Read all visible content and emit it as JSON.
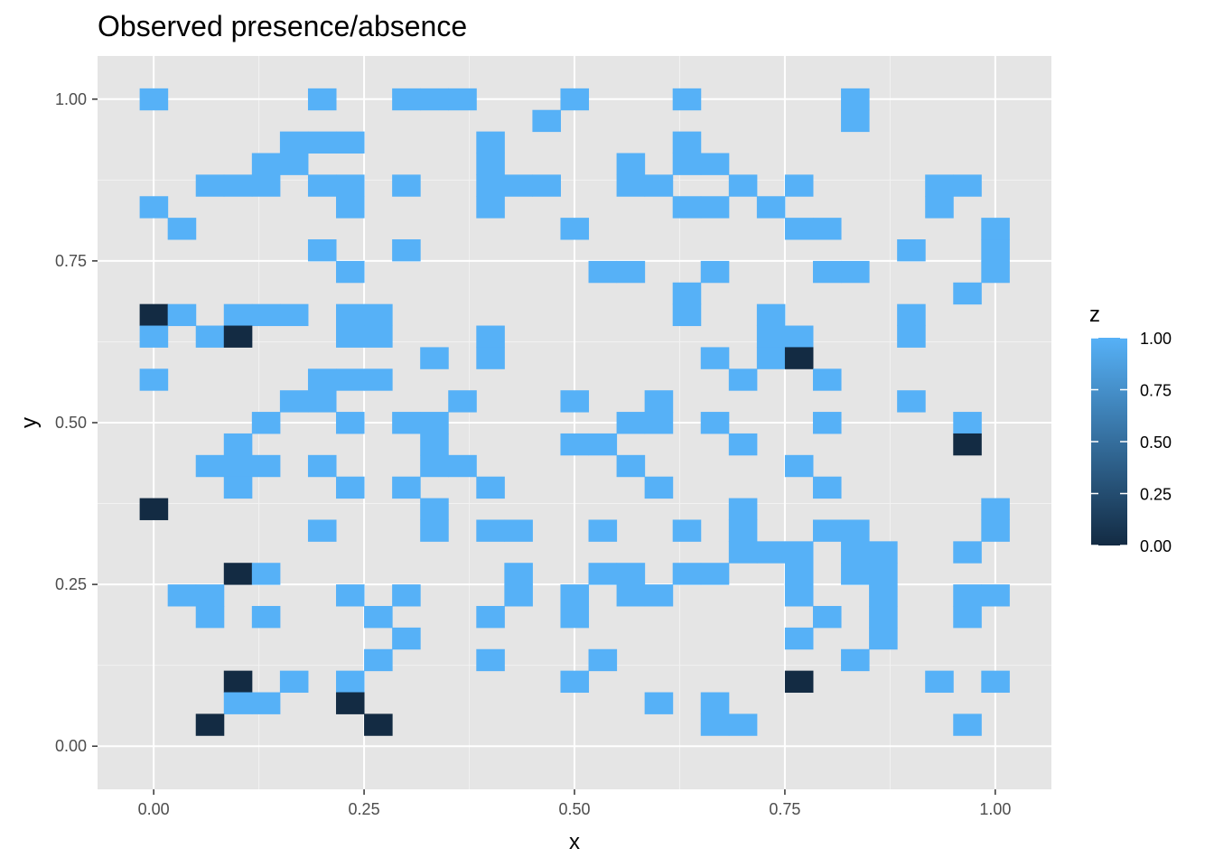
{
  "chart_data": {
    "type": "heatmap",
    "title": "Observed presence/absence",
    "xlabel": "x",
    "ylabel": "y",
    "xlim": [
      -0.0667,
      1.0667
    ],
    "ylim": [
      -0.0667,
      1.0667
    ],
    "xticks": [
      0,
      0.25,
      0.5,
      0.75,
      1
    ],
    "yticks": [
      0,
      0.25,
      0.5,
      0.75,
      1
    ],
    "xtick_labels": [
      "0.00",
      "0.25",
      "0.50",
      "0.75",
      "1.00"
    ],
    "ytick_labels": [
      "0.00",
      "0.25",
      "0.50",
      "0.75",
      "1.00"
    ],
    "grid": true,
    "panel_background": "#e5e5e5",
    "cell_width": 0.03333,
    "color_low": "#132b43",
    "color_high": "#56b1f7",
    "legend": {
      "title": "z",
      "position": "right",
      "breaks": [
        0,
        0.25,
        0.5,
        0.75,
        1
      ],
      "labels": [
        "0.00",
        "0.25",
        "0.50",
        "0.75",
        "1.00"
      ]
    },
    "note_cells": "each cell is [column, row, z]; column index c maps to x = c/30, row index r maps to y = r/30",
    "cells": [
      [
        0,
        30,
        1
      ],
      [
        6,
        30,
        1
      ],
      [
        9,
        30,
        1
      ],
      [
        10,
        30,
        1
      ],
      [
        11,
        30,
        1
      ],
      [
        15,
        30,
        1
      ],
      [
        19,
        30,
        1
      ],
      [
        25,
        30,
        1
      ],
      [
        14,
        29,
        1
      ],
      [
        25,
        29,
        1
      ],
      [
        5,
        28,
        1
      ],
      [
        6,
        28,
        1
      ],
      [
        7,
        28,
        1
      ],
      [
        12,
        28,
        1
      ],
      [
        19,
        28,
        1
      ],
      [
        4,
        27,
        1
      ],
      [
        5,
        27,
        1
      ],
      [
        12,
        27,
        1
      ],
      [
        17,
        27,
        1
      ],
      [
        19,
        27,
        1
      ],
      [
        20,
        27,
        1
      ],
      [
        2,
        26,
        1
      ],
      [
        3,
        26,
        1
      ],
      [
        4,
        26,
        1
      ],
      [
        6,
        26,
        1
      ],
      [
        7,
        26,
        1
      ],
      [
        9,
        26,
        1
      ],
      [
        12,
        26,
        1
      ],
      [
        13,
        26,
        1
      ],
      [
        14,
        26,
        1
      ],
      [
        17,
        26,
        1
      ],
      [
        18,
        26,
        1
      ],
      [
        21,
        26,
        1
      ],
      [
        23,
        26,
        1
      ],
      [
        28,
        26,
        1
      ],
      [
        29,
        26,
        1
      ],
      [
        0,
        25,
        1
      ],
      [
        7,
        25,
        1
      ],
      [
        12,
        25,
        1
      ],
      [
        19,
        25,
        1
      ],
      [
        20,
        25,
        1
      ],
      [
        22,
        25,
        1
      ],
      [
        28,
        25,
        1
      ],
      [
        1,
        24,
        1
      ],
      [
        15,
        24,
        1
      ],
      [
        23,
        24,
        1
      ],
      [
        24,
        24,
        1
      ],
      [
        30,
        24,
        1
      ],
      [
        6,
        23,
        1
      ],
      [
        9,
        23,
        1
      ],
      [
        27,
        23,
        1
      ],
      [
        30,
        23,
        1
      ],
      [
        7,
        22,
        1
      ],
      [
        16,
        22,
        1
      ],
      [
        17,
        22,
        1
      ],
      [
        20,
        22,
        1
      ],
      [
        24,
        22,
        1
      ],
      [
        25,
        22,
        1
      ],
      [
        30,
        22,
        1
      ],
      [
        19,
        21,
        1
      ],
      [
        29,
        21,
        1
      ],
      [
        0,
        20,
        0
      ],
      [
        1,
        20,
        1
      ],
      [
        3,
        20,
        1
      ],
      [
        4,
        20,
        1
      ],
      [
        5,
        20,
        1
      ],
      [
        7,
        20,
        1
      ],
      [
        8,
        20,
        1
      ],
      [
        19,
        20,
        1
      ],
      [
        22,
        20,
        1
      ],
      [
        27,
        20,
        1
      ],
      [
        0,
        19,
        1
      ],
      [
        2,
        19,
        1
      ],
      [
        3,
        19,
        0
      ],
      [
        7,
        19,
        1
      ],
      [
        8,
        19,
        1
      ],
      [
        12,
        19,
        1
      ],
      [
        22,
        19,
        1
      ],
      [
        23,
        19,
        1
      ],
      [
        27,
        19,
        1
      ],
      [
        10,
        18,
        1
      ],
      [
        12,
        18,
        1
      ],
      [
        20,
        18,
        1
      ],
      [
        22,
        18,
        1
      ],
      [
        23,
        18,
        0
      ],
      [
        0,
        17,
        1
      ],
      [
        6,
        17,
        1
      ],
      [
        7,
        17,
        1
      ],
      [
        8,
        17,
        1
      ],
      [
        21,
        17,
        1
      ],
      [
        24,
        17,
        1
      ],
      [
        5,
        16,
        1
      ],
      [
        6,
        16,
        1
      ],
      [
        11,
        16,
        1
      ],
      [
        15,
        16,
        1
      ],
      [
        18,
        16,
        1
      ],
      [
        27,
        16,
        1
      ],
      [
        4,
        15,
        1
      ],
      [
        7,
        15,
        1
      ],
      [
        9,
        15,
        1
      ],
      [
        10,
        15,
        1
      ],
      [
        17,
        15,
        1
      ],
      [
        18,
        15,
        1
      ],
      [
        20,
        15,
        1
      ],
      [
        24,
        15,
        1
      ],
      [
        29,
        15,
        1
      ],
      [
        3,
        14,
        1
      ],
      [
        10,
        14,
        1
      ],
      [
        15,
        14,
        1
      ],
      [
        16,
        14,
        1
      ],
      [
        21,
        14,
        1
      ],
      [
        29,
        14,
        0
      ],
      [
        2,
        13,
        1
      ],
      [
        3,
        13,
        1
      ],
      [
        4,
        13,
        1
      ],
      [
        6,
        13,
        1
      ],
      [
        10,
        13,
        1
      ],
      [
        11,
        13,
        1
      ],
      [
        17,
        13,
        1
      ],
      [
        23,
        13,
        1
      ],
      [
        3,
        12,
        1
      ],
      [
        7,
        12,
        1
      ],
      [
        9,
        12,
        1
      ],
      [
        12,
        12,
        1
      ],
      [
        18,
        12,
        1
      ],
      [
        24,
        12,
        1
      ],
      [
        0,
        11,
        0
      ],
      [
        10,
        11,
        1
      ],
      [
        21,
        11,
        1
      ],
      [
        30,
        11,
        1
      ],
      [
        6,
        10,
        1
      ],
      [
        10,
        10,
        1
      ],
      [
        12,
        10,
        1
      ],
      [
        13,
        10,
        1
      ],
      [
        16,
        10,
        1
      ],
      [
        19,
        10,
        1
      ],
      [
        21,
        10,
        1
      ],
      [
        24,
        10,
        1
      ],
      [
        25,
        10,
        1
      ],
      [
        30,
        10,
        1
      ],
      [
        21,
        9,
        1
      ],
      [
        22,
        9,
        1
      ],
      [
        23,
        9,
        1
      ],
      [
        25,
        9,
        1
      ],
      [
        26,
        9,
        1
      ],
      [
        29,
        9,
        1
      ],
      [
        3,
        8,
        0
      ],
      [
        4,
        8,
        1
      ],
      [
        13,
        8,
        1
      ],
      [
        16,
        8,
        1
      ],
      [
        17,
        8,
        1
      ],
      [
        19,
        8,
        1
      ],
      [
        20,
        8,
        1
      ],
      [
        23,
        8,
        1
      ],
      [
        25,
        8,
        1
      ],
      [
        26,
        8,
        1
      ],
      [
        1,
        7,
        1
      ],
      [
        2,
        7,
        1
      ],
      [
        7,
        7,
        1
      ],
      [
        9,
        7,
        1
      ],
      [
        13,
        7,
        1
      ],
      [
        15,
        7,
        1
      ],
      [
        17,
        7,
        1
      ],
      [
        18,
        7,
        1
      ],
      [
        23,
        7,
        1
      ],
      [
        26,
        7,
        1
      ],
      [
        29,
        7,
        1
      ],
      [
        30,
        7,
        1
      ],
      [
        2,
        6,
        1
      ],
      [
        4,
        6,
        1
      ],
      [
        8,
        6,
        1
      ],
      [
        12,
        6,
        1
      ],
      [
        15,
        6,
        1
      ],
      [
        24,
        6,
        1
      ],
      [
        26,
        6,
        1
      ],
      [
        29,
        6,
        1
      ],
      [
        9,
        5,
        1
      ],
      [
        23,
        5,
        1
      ],
      [
        26,
        5,
        1
      ],
      [
        8,
        4,
        1
      ],
      [
        12,
        4,
        1
      ],
      [
        16,
        4,
        1
      ],
      [
        25,
        4,
        1
      ],
      [
        3,
        3,
        0
      ],
      [
        5,
        3,
        1
      ],
      [
        7,
        3,
        1
      ],
      [
        15,
        3,
        1
      ],
      [
        23,
        3,
        0
      ],
      [
        28,
        3,
        1
      ],
      [
        30,
        3,
        1
      ],
      [
        3,
        2,
        1
      ],
      [
        4,
        2,
        1
      ],
      [
        7,
        2,
        0
      ],
      [
        18,
        2,
        1
      ],
      [
        20,
        2,
        1
      ],
      [
        2,
        1,
        0
      ],
      [
        8,
        1,
        0
      ],
      [
        20,
        1,
        1
      ],
      [
        21,
        1,
        1
      ],
      [
        29,
        1,
        1
      ]
    ]
  }
}
